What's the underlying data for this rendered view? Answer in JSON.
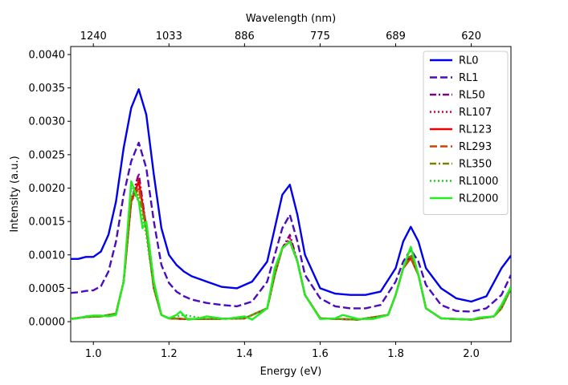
{
  "chart_data": {
    "type": "line",
    "xlabel": "Energy (eV)",
    "ylabel": "Intensity (a.u.)",
    "x2label": "Wavelength (nm)",
    "xlim": [
      0.94,
      2.105
    ],
    "ylim": [
      -0.0003,
      0.00412
    ],
    "xticks": [
      1.0,
      1.2,
      1.4,
      1.6,
      1.8,
      2.0
    ],
    "xtick_labels": [
      "1.0",
      "1.2",
      "1.4",
      "1.6",
      "1.8",
      "2.0"
    ],
    "yticks": [
      0.0,
      0.0005,
      0.001,
      0.0015,
      0.002,
      0.0025,
      0.003,
      0.0035,
      0.004
    ],
    "ytick_labels": [
      "0.0000",
      "0.0005",
      "0.0010",
      "0.0015",
      "0.0020",
      "0.0025",
      "0.0030",
      "0.0035",
      "0.0040"
    ],
    "top_ticks": [
      {
        "label": "1240",
        "energy": 1.0
      },
      {
        "label": "1033",
        "energy": 1.2
      },
      {
        "label": "886",
        "energy": 1.4
      },
      {
        "label": "775",
        "energy": 1.6
      },
      {
        "label": "689",
        "energy": 1.8
      },
      {
        "label": "620",
        "energy": 2.0
      }
    ],
    "grid": false,
    "legend_position": "top-right",
    "series": [
      {
        "name": "RL0",
        "color": "#0000ee",
        "dash": "solid",
        "x": [
          0.94,
          0.96,
          0.98,
          1.0,
          1.02,
          1.04,
          1.06,
          1.08,
          1.1,
          1.12,
          1.14,
          1.16,
          1.18,
          1.2,
          1.22,
          1.24,
          1.26,
          1.3,
          1.34,
          1.38,
          1.42,
          1.46,
          1.48,
          1.5,
          1.52,
          1.54,
          1.56,
          1.6,
          1.64,
          1.68,
          1.72,
          1.76,
          1.8,
          1.82,
          1.84,
          1.86,
          1.88,
          1.92,
          1.96,
          2.0,
          2.04,
          2.08,
          2.105
        ],
        "y": [
          0.00094,
          0.00094,
          0.00097,
          0.00097,
          0.00105,
          0.0013,
          0.0018,
          0.0026,
          0.0032,
          0.00348,
          0.0031,
          0.0022,
          0.0014,
          0.001,
          0.00085,
          0.00075,
          0.00068,
          0.0006,
          0.00052,
          0.0005,
          0.0006,
          0.0009,
          0.0014,
          0.0019,
          0.00205,
          0.0016,
          0.001,
          0.0005,
          0.00042,
          0.0004,
          0.0004,
          0.00045,
          0.0008,
          0.0012,
          0.00142,
          0.0012,
          0.0008,
          0.0005,
          0.00035,
          0.0003,
          0.00038,
          0.0008,
          0.00099
        ]
      },
      {
        "name": "RL1",
        "color": "#4b0bc0",
        "dash": "dashed",
        "x": [
          0.94,
          0.96,
          0.98,
          1.0,
          1.02,
          1.04,
          1.06,
          1.08,
          1.1,
          1.12,
          1.14,
          1.16,
          1.18,
          1.2,
          1.22,
          1.24,
          1.26,
          1.3,
          1.34,
          1.38,
          1.42,
          1.46,
          1.48,
          1.5,
          1.52,
          1.54,
          1.56,
          1.6,
          1.64,
          1.68,
          1.72,
          1.76,
          1.8,
          1.82,
          1.84,
          1.86,
          1.88,
          1.92,
          1.96,
          2.0,
          2.04,
          2.08,
          2.105
        ],
        "y": [
          0.00043,
          0.00044,
          0.00046,
          0.00047,
          0.00053,
          0.00075,
          0.0012,
          0.0019,
          0.0024,
          0.00268,
          0.0023,
          0.0015,
          0.00085,
          0.00058,
          0.00045,
          0.00038,
          0.00033,
          0.00028,
          0.00025,
          0.00023,
          0.0003,
          0.0006,
          0.001,
          0.0014,
          0.0016,
          0.0012,
          0.0007,
          0.00035,
          0.00023,
          0.0002,
          0.0002,
          0.00025,
          0.0006,
          0.0009,
          0.00108,
          0.0009,
          0.00055,
          0.00025,
          0.00016,
          0.00015,
          0.0002,
          0.0004,
          0.0007
        ]
      },
      {
        "name": "RL50",
        "color": "#800080",
        "dash": "dashdot",
        "x": [
          0.94,
          0.98,
          1.02,
          1.06,
          1.08,
          1.1,
          1.12,
          1.14,
          1.16,
          1.18,
          1.2,
          1.24,
          1.3,
          1.4,
          1.46,
          1.48,
          1.5,
          1.52,
          1.54,
          1.56,
          1.6,
          1.7,
          1.78,
          1.8,
          1.82,
          1.84,
          1.86,
          1.88,
          1.92,
          2.0,
          2.06,
          2.08,
          2.105
        ],
        "y": [
          4e-05,
          7e-05,
          8e-05,
          0.00012,
          0.0006,
          0.0018,
          0.00222,
          0.0014,
          0.0005,
          0.0001,
          5e-05,
          4e-05,
          4e-05,
          5e-05,
          0.0002,
          0.0007,
          0.0011,
          0.0013,
          0.0009,
          0.0004,
          5e-05,
          3e-05,
          0.0001,
          0.0004,
          0.0008,
          0.001,
          0.0007,
          0.0002,
          5e-05,
          3e-05,
          8e-05,
          0.0002,
          0.0005
        ]
      },
      {
        "name": "RL107",
        "color": "#dd0033",
        "dash": "dotted",
        "x": [
          0.94,
          0.98,
          1.02,
          1.06,
          1.08,
          1.1,
          1.12,
          1.14,
          1.16,
          1.18,
          1.2,
          1.24,
          1.3,
          1.4,
          1.46,
          1.48,
          1.5,
          1.52,
          1.54,
          1.56,
          1.6,
          1.7,
          1.78,
          1.8,
          1.82,
          1.84,
          1.86,
          1.88,
          1.92,
          2.0,
          2.06,
          2.08,
          2.105
        ],
        "y": [
          4e-05,
          7e-05,
          8e-05,
          0.00012,
          0.0006,
          0.0018,
          0.00215,
          0.0014,
          0.0005,
          0.0001,
          5e-05,
          4e-05,
          4e-05,
          5e-05,
          0.0002,
          0.0007,
          0.0011,
          0.00125,
          0.0009,
          0.0004,
          5e-05,
          3e-05,
          0.0001,
          0.0004,
          0.0008,
          0.001,
          0.0007,
          0.0002,
          5e-05,
          3e-05,
          8e-05,
          0.0002,
          0.0005
        ]
      },
      {
        "name": "RL123",
        "color": "#ee0000",
        "dash": "solid",
        "x": [
          0.94,
          0.98,
          1.02,
          1.06,
          1.08,
          1.1,
          1.12,
          1.14,
          1.16,
          1.18,
          1.2,
          1.24,
          1.3,
          1.4,
          1.46,
          1.48,
          1.5,
          1.52,
          1.54,
          1.56,
          1.6,
          1.7,
          1.78,
          1.8,
          1.82,
          1.84,
          1.86,
          1.88,
          1.92,
          2.0,
          2.06,
          2.08,
          2.105
        ],
        "y": [
          4e-05,
          7e-05,
          8e-05,
          0.00012,
          0.0006,
          0.0018,
          0.0021,
          0.0014,
          0.0005,
          0.0001,
          5e-05,
          4e-05,
          4e-05,
          5e-05,
          0.0002,
          0.0007,
          0.0011,
          0.0012,
          0.0009,
          0.0004,
          5e-05,
          3e-05,
          0.0001,
          0.0004,
          0.0008,
          0.00095,
          0.0007,
          0.0002,
          5e-05,
          3e-05,
          8e-05,
          0.0002,
          0.0005
        ]
      },
      {
        "name": "RL293",
        "color": "#cc4400",
        "dash": "dashed",
        "x": [
          0.94,
          0.98,
          1.02,
          1.06,
          1.08,
          1.1,
          1.12,
          1.14,
          1.16,
          1.18,
          1.2,
          1.24,
          1.3,
          1.4,
          1.46,
          1.48,
          1.5,
          1.52,
          1.54,
          1.56,
          1.6,
          1.7,
          1.78,
          1.8,
          1.82,
          1.84,
          1.86,
          1.88,
          1.92,
          2.0,
          2.06,
          2.08,
          2.105
        ],
        "y": [
          4e-05,
          7e-05,
          8e-05,
          0.00012,
          0.0006,
          0.0018,
          0.002,
          0.0014,
          0.0005,
          0.0001,
          5e-05,
          4e-05,
          4e-05,
          5e-05,
          0.0002,
          0.0007,
          0.0011,
          0.0012,
          0.0009,
          0.0004,
          5e-05,
          3e-05,
          0.0001,
          0.0004,
          0.0008,
          0.00095,
          0.0007,
          0.0002,
          5e-05,
          3e-05,
          8e-05,
          0.0002,
          0.0005
        ]
      },
      {
        "name": "RL350",
        "color": "#808000",
        "dash": "dashdot",
        "x": [
          0.94,
          0.98,
          1.02,
          1.06,
          1.08,
          1.1,
          1.12,
          1.14,
          1.16,
          1.18,
          1.2,
          1.24,
          1.3,
          1.4,
          1.46,
          1.48,
          1.5,
          1.52,
          1.54,
          1.56,
          1.6,
          1.7,
          1.78,
          1.8,
          1.82,
          1.84,
          1.86,
          1.88,
          1.92,
          2.0,
          2.06,
          2.08,
          2.105
        ],
        "y": [
          4e-05,
          7e-05,
          8e-05,
          0.00012,
          0.0006,
          0.0019,
          0.0019,
          0.0014,
          0.0005,
          0.0001,
          5e-05,
          4e-05,
          4e-05,
          5e-05,
          0.0002,
          0.0007,
          0.0011,
          0.0012,
          0.0009,
          0.0004,
          5e-05,
          3e-05,
          0.0001,
          0.0004,
          0.0008,
          0.001,
          0.0007,
          0.0002,
          5e-05,
          3e-05,
          8e-05,
          0.0002,
          0.0005
        ]
      },
      {
        "name": "RL1000",
        "color": "#22cc22",
        "dash": "dotted",
        "x": [
          0.94,
          0.98,
          1.02,
          1.06,
          1.08,
          1.1,
          1.12,
          1.14,
          1.16,
          1.18,
          1.2,
          1.24,
          1.3,
          1.4,
          1.46,
          1.48,
          1.5,
          1.52,
          1.54,
          1.56,
          1.6,
          1.7,
          1.78,
          1.8,
          1.82,
          1.84,
          1.86,
          1.88,
          1.92,
          2.0,
          2.06,
          2.08,
          2.105
        ],
        "y": [
          4e-05,
          7e-05,
          8e-05,
          0.00012,
          0.0006,
          0.002,
          0.0018,
          0.0013,
          0.0005,
          0.0001,
          5e-05,
          0.0001,
          4e-05,
          5e-05,
          0.0002,
          0.0007,
          0.0011,
          0.0012,
          0.0009,
          0.0004,
          5e-05,
          3e-05,
          0.0001,
          0.0004,
          0.0008,
          0.0011,
          0.0007,
          0.0002,
          5e-05,
          3e-05,
          8e-05,
          0.0002,
          0.0005
        ]
      },
      {
        "name": "RL2000",
        "color": "#22ee22",
        "dash": "solid",
        "x": [
          0.94,
          0.96,
          0.98,
          1.0,
          1.02,
          1.04,
          1.06,
          1.08,
          1.1,
          1.12,
          1.13,
          1.14,
          1.16,
          1.18,
          1.2,
          1.22,
          1.23,
          1.25,
          1.28,
          1.3,
          1.35,
          1.4,
          1.42,
          1.46,
          1.48,
          1.5,
          1.52,
          1.54,
          1.56,
          1.6,
          1.64,
          1.66,
          1.7,
          1.74,
          1.78,
          1.8,
          1.82,
          1.84,
          1.86,
          1.88,
          1.92,
          1.96,
          2.0,
          2.02,
          2.06,
          2.08,
          2.105
        ],
        "y": [
          4e-05,
          5e-05,
          8e-05,
          9e-05,
          9e-05,
          8e-05,
          0.0001,
          0.0006,
          0.0021,
          0.0018,
          0.0014,
          0.0015,
          0.0006,
          0.0001,
          5e-05,
          0.0001,
          0.00015,
          3e-05,
          5e-05,
          8e-05,
          4e-05,
          8e-05,
          3e-05,
          0.0002,
          0.0008,
          0.0011,
          0.0012,
          0.0009,
          0.0004,
          4e-05,
          5e-05,
          0.0001,
          4e-05,
          4e-05,
          0.0001,
          0.0004,
          0.0008,
          0.00112,
          0.0007,
          0.0002,
          5e-05,
          4e-05,
          3e-05,
          6e-05,
          8e-05,
          0.00025,
          0.00052
        ]
      }
    ]
  }
}
